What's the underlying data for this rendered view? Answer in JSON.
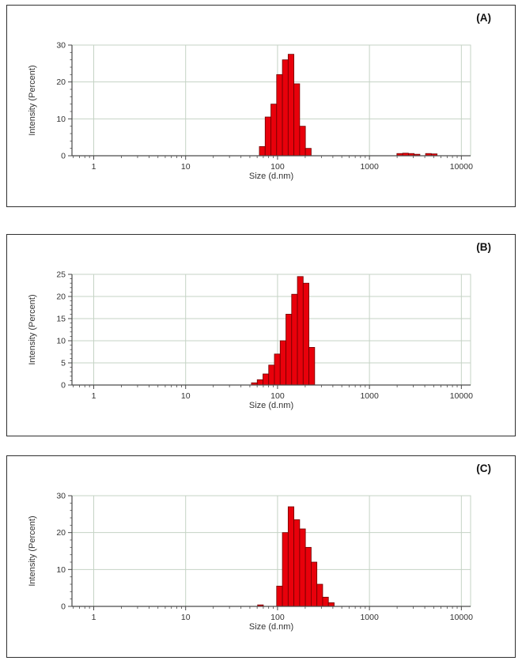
{
  "colors": {
    "bar_fill": "#e8000b",
    "bar_stroke": "#6e0000",
    "grid": "#c5d3c5",
    "axis": "#4a4a4a",
    "text": "#333333",
    "panel_border": "#2f2f2f"
  },
  "chart_data": [
    {
      "type": "bar",
      "panel_label": "(A)",
      "xlabel": "Size (d.nm)",
      "ylabel": "Intensity (Percent)",
      "xscale": "log",
      "xlim": [
        0.58,
        12600
      ],
      "ylim": [
        0,
        30
      ],
      "xticks": [
        1,
        10,
        100,
        1000,
        10000
      ],
      "ytick_step": 10,
      "ytick_minor_step": 2,
      "grid": true,
      "legend": "none",
      "bin_width_decades": 0.0625,
      "bars": [
        {
          "x": 68.2,
          "y": 2.5
        },
        {
          "x": 78.8,
          "y": 10.5
        },
        {
          "x": 91.0,
          "y": 14
        },
        {
          "x": 105.1,
          "y": 22
        },
        {
          "x": 121.4,
          "y": 26
        },
        {
          "x": 140.2,
          "y": 27.5
        },
        {
          "x": 161.9,
          "y": 19.5
        },
        {
          "x": 187.0,
          "y": 8
        },
        {
          "x": 216.0,
          "y": 2
        },
        {
          "x": 2138,
          "y": 0.6
        },
        {
          "x": 2469,
          "y": 0.7
        },
        {
          "x": 2851,
          "y": 0.6
        },
        {
          "x": 3293,
          "y": 0.4
        },
        {
          "x": 4385,
          "y": 0.6
        },
        {
          "x": 5064,
          "y": 0.5
        }
      ]
    },
    {
      "type": "bar",
      "panel_label": "(B)",
      "xlabel": "Size (d.nm)",
      "ylabel": "Intensity (Percent)",
      "xscale": "log",
      "xlim": [
        0.58,
        12600
      ],
      "ylim": [
        0,
        25
      ],
      "xticks": [
        1,
        10,
        100,
        1000,
        10000
      ],
      "ytick_step": 5,
      "ytick_minor_step": 1,
      "grid": true,
      "legend": "none",
      "bin_width_decades": 0.0625,
      "bars": [
        {
          "x": 55.9,
          "y": 0.5
        },
        {
          "x": 64.6,
          "y": 1.2
        },
        {
          "x": 74.6,
          "y": 2.5
        },
        {
          "x": 86.1,
          "y": 4.5
        },
        {
          "x": 99.4,
          "y": 7
        },
        {
          "x": 114.8,
          "y": 10
        },
        {
          "x": 132.6,
          "y": 16
        },
        {
          "x": 153.1,
          "y": 20.5
        },
        {
          "x": 176.8,
          "y": 24.5
        },
        {
          "x": 204.2,
          "y": 23
        },
        {
          "x": 235.8,
          "y": 8.5
        }
      ]
    },
    {
      "type": "bar",
      "panel_label": "(C)",
      "xlabel": "Size (d.nm)",
      "ylabel": "Intensity (Percent)",
      "xscale": "log",
      "xlim": [
        0.58,
        12600
      ],
      "ylim": [
        0,
        30
      ],
      "xticks": [
        1,
        10,
        100,
        1000,
        10000
      ],
      "ytick_step": 10,
      "ytick_minor_step": 2,
      "grid": true,
      "legend": "none",
      "bin_width_decades": 0.0625,
      "bars": [
        {
          "x": 65.2,
          "y": 0.4
        },
        {
          "x": 105.1,
          "y": 5.5
        },
        {
          "x": 121.4,
          "y": 20
        },
        {
          "x": 140.2,
          "y": 27
        },
        {
          "x": 161.9,
          "y": 23.5
        },
        {
          "x": 187.0,
          "y": 21
        },
        {
          "x": 216.0,
          "y": 16
        },
        {
          "x": 249.4,
          "y": 12
        },
        {
          "x": 288.1,
          "y": 6
        },
        {
          "x": 332.7,
          "y": 2.5
        },
        {
          "x": 384.3,
          "y": 1
        }
      ]
    }
  ]
}
